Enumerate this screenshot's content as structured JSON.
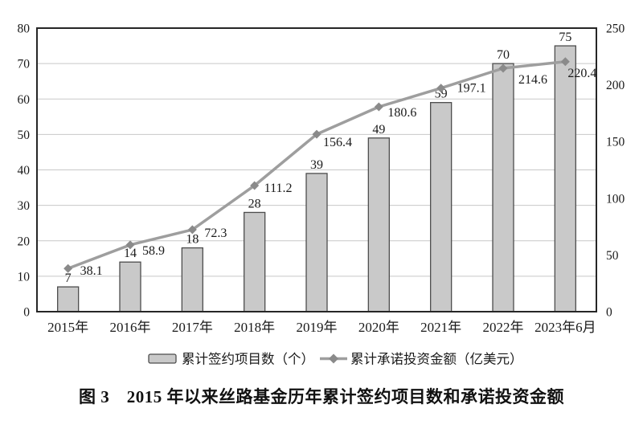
{
  "figure": {
    "caption": "图 3　2015 年以来丝路基金历年累计签约项目数和承诺投资金额"
  },
  "chart_data": {
    "type": "bar",
    "title": "图 3　2015 年以来丝路基金历年累计签约项目数和承诺投资金额",
    "categories": [
      "2015年",
      "2016年",
      "2017年",
      "2018年",
      "2019年",
      "2020年",
      "2021年",
      "2022年",
      "2023年6月"
    ],
    "series": [
      {
        "name": "累计签约项目数（个）",
        "type": "bar",
        "axis": "left",
        "values": [
          7,
          14,
          18,
          28,
          39,
          49,
          59,
          70,
          75
        ]
      },
      {
        "name": "累计承诺投资金额（亿美元）",
        "type": "line",
        "axis": "right",
        "values": [
          38.1,
          58.9,
          72.3,
          111.2,
          156.4,
          180.6,
          197.1,
          214.6,
          220.4
        ],
        "label_offsets": [
          [
            15,
            8
          ],
          [
            15,
            12
          ],
          [
            15,
            9
          ],
          [
            12,
            8
          ],
          [
            8,
            15
          ],
          [
            11,
            12
          ],
          [
            20,
            5
          ],
          [
            19,
            19
          ],
          [
            3,
            19
          ]
        ]
      }
    ],
    "left_axis": {
      "min": 0,
      "max": 80,
      "step": 10
    },
    "right_axis": {
      "min": 0,
      "max": 250,
      "step": 50
    },
    "grid": true,
    "legend_position": "bottom",
    "colors": {
      "bar_fill": "#c9c9c9",
      "bar_stroke": "#4d4d4d",
      "line": "#9e9e9e",
      "marker": "#8a8a8a",
      "grid": "#c8c8c8",
      "border": "#262626",
      "text": "#1a1a1a"
    }
  }
}
